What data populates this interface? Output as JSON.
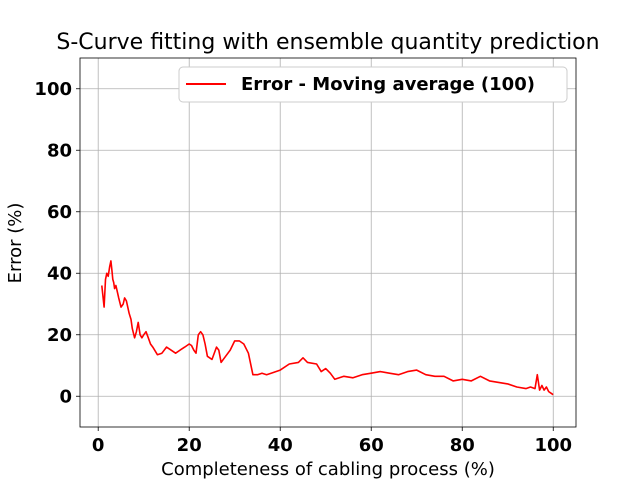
{
  "chart_data": {
    "type": "line",
    "title": "S-Curve fitting with ensemble quantity prediction",
    "xlabel": "Completeness of cabling process (%)",
    "ylabel": "Error (%)",
    "xlim": [
      -4,
      105
    ],
    "ylim": [
      -10,
      110
    ],
    "xticks": [
      0,
      20,
      40,
      60,
      80,
      100
    ],
    "yticks": [
      0,
      20,
      40,
      60,
      80,
      100
    ],
    "xtick_labels": [
      "0",
      "20",
      "40",
      "60",
      "80",
      "100"
    ],
    "ytick_labels": [
      "0",
      "20",
      "40",
      "60",
      "80",
      "100"
    ],
    "grid": true,
    "legend": {
      "placement": "top-right",
      "entries": [
        "Error - Moving average (100)"
      ]
    },
    "series": [
      {
        "name": "Error - Moving average (100)",
        "color": "#ff0000",
        "x": [
          0.8,
          1.0,
          1.3,
          1.6,
          1.9,
          2.2,
          2.5,
          2.8,
          3.0,
          3.2,
          3.4,
          3.6,
          3.9,
          4.2,
          4.5,
          5.0,
          5.5,
          5.8,
          6.2,
          6.8,
          7.2,
          7.5,
          8.0,
          8.4,
          8.8,
          9.2,
          9.6,
          10.0,
          10.5,
          11.0,
          11.5,
          12.0,
          13.0,
          14.0,
          15.0,
          16.0,
          17.0,
          18.0,
          19.0,
          20.0,
          20.5,
          21.0,
          21.5,
          22.0,
          22.5,
          23.0,
          23.5,
          24.0,
          25.0,
          26.0,
          26.5,
          27.0,
          28.0,
          29.0,
          30.0,
          31.0,
          32.0,
          33.0,
          34.0,
          35.0,
          36.0,
          37.0,
          38.0,
          40.0,
          42.0,
          44.0,
          45.0,
          46.0,
          48.0,
          49.0,
          50.0,
          51.0,
          52.0,
          54.0,
          56.0,
          58.0,
          60.0,
          62.0,
          64.0,
          66.0,
          68.0,
          70.0,
          72.0,
          74.0,
          76.0,
          78.0,
          80.0,
          82.0,
          84.0,
          86.0,
          88.0,
          90.0,
          92.0,
          94.0,
          95.0,
          96.0,
          96.5,
          97.0,
          97.5,
          98.0,
          98.5,
          99.0,
          99.5,
          100.0
        ],
        "y": [
          36,
          33,
          29,
          38,
          40,
          39,
          42,
          44,
          41,
          38,
          37,
          35,
          36,
          34,
          32,
          29,
          30,
          32,
          31,
          27,
          25,
          22,
          19,
          21,
          24,
          20,
          19,
          20,
          21,
          19,
          17,
          16,
          13.5,
          14,
          16,
          15,
          14,
          15,
          16,
          17,
          16.5,
          15,
          14,
          20,
          21,
          20,
          17,
          13,
          12,
          16,
          15,
          11,
          13,
          15,
          18,
          18,
          17,
          14,
          7,
          7,
          7.5,
          7,
          7.5,
          8.5,
          10.5,
          11,
          12.5,
          11,
          10.5,
          8,
          9,
          7.5,
          5.5,
          6.5,
          6,
          7,
          7.5,
          8,
          7.5,
          7,
          8,
          8.5,
          7,
          6.5,
          6.5,
          5,
          5.5,
          5,
          6.5,
          5,
          4.5,
          4,
          3,
          2.5,
          3,
          2.5,
          7,
          2,
          3.5,
          2,
          3,
          1.5,
          1,
          0.5
        ]
      }
    ]
  }
}
